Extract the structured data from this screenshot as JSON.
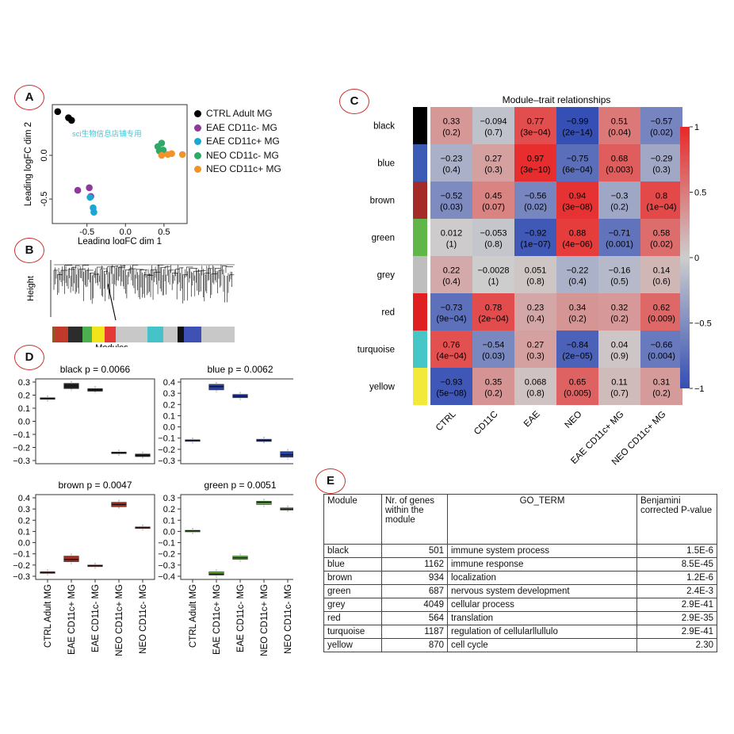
{
  "panel_labels": {
    "a": "A",
    "b": "B",
    "c": "C",
    "d": "D",
    "e": "E"
  },
  "colors": {
    "panel_circle": "#c9302c"
  },
  "chart_data": [
    {
      "id": "A",
      "type": "scatter",
      "xlabel": "Leading logFC dim 1",
      "ylabel": "Leading logFC dim 2",
      "xticks": [
        "-0.5",
        "0.0",
        "0.5"
      ],
      "yticks": [
        "-0.5",
        "0.0"
      ],
      "xlim": [
        -0.95,
        0.8
      ],
      "ylim": [
        -0.78,
        0.58
      ],
      "watermark": "sci生物信息店铺专用",
      "series": [
        {
          "name": "CTRL Adult MG",
          "color": "#000000",
          "points": [
            [
              -0.88,
              0.5
            ],
            [
              -0.74,
              0.43
            ],
            [
              -0.7,
              0.4
            ]
          ]
        },
        {
          "name": "EAE CD11c- MG",
          "color": "#8e3a9b",
          "points": [
            [
              -0.62,
              -0.4
            ],
            [
              -0.47,
              -0.37
            ],
            [
              -0.45,
              -0.47
            ]
          ]
        },
        {
          "name": "EAE CD11c+ MG",
          "color": "#1aa7d4",
          "points": [
            [
              -0.46,
              -0.48
            ],
            [
              -0.42,
              -0.6
            ],
            [
              -0.41,
              -0.65
            ]
          ]
        },
        {
          "name": "NEO CD11c- MG",
          "color": "#2dab66",
          "points": [
            [
              0.42,
              0.1
            ],
            [
              0.47,
              0.14
            ],
            [
              0.44,
              0.05
            ],
            [
              0.49,
              0.06
            ]
          ]
        },
        {
          "name": "NEO CD11c+ MG",
          "color": "#f0932b",
          "points": [
            [
              0.47,
              0.0
            ],
            [
              0.55,
              0.01
            ],
            [
              0.6,
              0.02
            ],
            [
              0.74,
              0.01
            ]
          ]
        }
      ]
    },
    {
      "id": "B",
      "type": "dendrogram",
      "ylabel": "Height",
      "xlabel": "Modules",
      "module_colors": [
        "#8b5a2b",
        "#c0392b",
        "#2c2c2c",
        "#4caf50",
        "#f1e41b",
        "#e53935",
        "#c8c8c8",
        "#45c3c8",
        "#c8c8c8",
        "#111111",
        "#3f51b5",
        "#c8c8c8"
      ]
    },
    {
      "id": "C",
      "type": "heatmap",
      "title": "Module–trait relationships",
      "rows": [
        "black",
        "blue",
        "brown",
        "green",
        "grey",
        "red",
        "turquoise",
        "yellow"
      ],
      "row_colors": [
        "#000000",
        "#3b5bb5",
        "#a52a2a",
        "#61b64a",
        "#bebebe",
        "#e02020",
        "#46c6c6",
        "#f3e93b"
      ],
      "columns": [
        "CTRL",
        "CD11C",
        "EAE",
        "NEO",
        "EAE CD11c+ MG",
        "NEO CD11c+ MG"
      ],
      "values": [
        [
          0.33,
          -0.094,
          0.77,
          -0.99,
          0.51,
          -0.57
        ],
        [
          -0.23,
          0.27,
          0.97,
          -0.75,
          0.68,
          -0.29
        ],
        [
          -0.52,
          0.45,
          -0.56,
          0.94,
          -0.3,
          0.8
        ],
        [
          0.012,
          -0.053,
          -0.92,
          0.88,
          -0.71,
          0.58
        ],
        [
          0.22,
          -0.0028,
          0.051,
          -0.22,
          -0.16,
          0.14
        ],
        [
          -0.73,
          0.78,
          0.23,
          0.34,
          0.32,
          0.62
        ],
        [
          0.76,
          -0.54,
          0.27,
          -0.84,
          0.04,
          -0.66
        ],
        [
          -0.93,
          0.35,
          0.068,
          0.65,
          0.11,
          0.31
        ]
      ],
      "value_labels": [
        [
          "0.33",
          "−0.094",
          "0.77",
          "−0.99",
          "0.51",
          "−0.57"
        ],
        [
          "−0.23",
          "0.27",
          "0.97",
          "−0.75",
          "0.68",
          "−0.29"
        ],
        [
          "−0.52",
          "0.45",
          "−0.56",
          "0.94",
          "−0.3",
          "0.8"
        ],
        [
          "0.012",
          "−0.053",
          "−0.92",
          "0.88",
          "−0.71",
          "0.58"
        ],
        [
          "0.22",
          "−0.0028",
          "0.051",
          "−0.22",
          "−0.16",
          "0.14"
        ],
        [
          "−0.73",
          "0.78",
          "0.23",
          "0.34",
          "0.32",
          "0.62"
        ],
        [
          "0.76",
          "−0.54",
          "0.27",
          "−0.84",
          "0.04",
          "−0.66"
        ],
        [
          "−0.93",
          "0.35",
          "0.068",
          "0.65",
          "0.11",
          "0.31"
        ]
      ],
      "pvalues": [
        [
          "(0.2)",
          "(0.7)",
          "(3e−04)",
          "(2e−14)",
          "(0.04)",
          "(0.02)"
        ],
        [
          "(0.4)",
          "(0.3)",
          "(3e−10)",
          "(6e−04)",
          "(0.003)",
          "(0.3)"
        ],
        [
          "(0.03)",
          "(0.07)",
          "(0.02)",
          "(3e−08)",
          "(0.2)",
          "(1e−04)"
        ],
        [
          "(1)",
          "(0.8)",
          "(1e−07)",
          "(4e−06)",
          "(0.001)",
          "(0.02)"
        ],
        [
          "(0.4)",
          "(1)",
          "(0.8)",
          "(0.4)",
          "(0.5)",
          "(0.6)"
        ],
        [
          "(9e−04)",
          "(2e−04)",
          "(0.4)",
          "(0.2)",
          "(0.2)",
          "(0.009)"
        ],
        [
          "(4e−04)",
          "(0.03)",
          "(0.3)",
          "(2e−05)",
          "(0.9)",
          "(0.004)"
        ],
        [
          "(5e−08)",
          "(0.2)",
          "(0.8)",
          "(0.005)",
          "(0.7)",
          "(0.2)"
        ]
      ],
      "scale_ticks": [
        "1",
        "0.5",
        "0",
        "−0.5",
        "−1"
      ],
      "scale_values": [
        1,
        0.5,
        0,
        -0.5,
        -1
      ]
    },
    {
      "id": "D",
      "type": "boxplot",
      "groups": [
        "CTRL Adult MG",
        "EAE CD11c+ MG",
        "EAE CD11c- MG",
        "NEO CD11c+ MG",
        "NEO CD11c- MG"
      ],
      "panels": [
        {
          "title": "black p = 0.0066",
          "color": "#222222",
          "ylim": [
            -0.3,
            0.3
          ],
          "yticks": [
            "0.3",
            "0.2",
            "0.1",
            "0.0",
            "−0.1",
            "−0.2",
            "−0.3"
          ],
          "ytick_values": [
            0.3,
            0.2,
            0.1,
            0.0,
            -0.1,
            -0.2,
            -0.3
          ],
          "boxes": [
            [
              0.17,
              0.175,
              0.18
            ],
            [
              0.25,
              0.27,
              0.29
            ],
            [
              0.23,
              0.24,
              0.25
            ],
            [
              -0.245,
              -0.24,
              -0.235
            ],
            [
              -0.27,
              -0.26,
              -0.25
            ]
          ]
        },
        {
          "title": "blue p = 0.0062",
          "color": "#2b3f9e",
          "ylim": [
            -0.3,
            0.4
          ],
          "yticks": [
            "0.4",
            "0.3",
            "0.2",
            "0.1",
            "0.0",
            "−0.1",
            "−0.2",
            "−0.3"
          ],
          "ytick_values": [
            0.4,
            0.3,
            0.2,
            0.1,
            0.0,
            -0.1,
            -0.2,
            -0.3
          ],
          "boxes": [
            [
              -0.125,
              -0.12,
              -0.115
            ],
            [
              0.33,
              0.36,
              0.38
            ],
            [
              0.26,
              0.275,
              0.29
            ],
            [
              -0.13,
              -0.12,
              -0.11
            ],
            [
              -0.27,
              -0.25,
              -0.22
            ]
          ]
        },
        {
          "title": "brown p = 0.0047",
          "color": "#a13024",
          "ylim": [
            -0.3,
            0.4
          ],
          "yticks": [
            "0.4",
            "0.3",
            "0.2",
            "0.1",
            "0.0",
            "−0.1",
            "−0.2",
            "−0.3"
          ],
          "ytick_values": [
            0.4,
            0.3,
            0.2,
            0.1,
            0.0,
            -0.1,
            -0.2,
            -0.3
          ],
          "boxes": [
            [
              -0.27,
              -0.265,
              -0.26
            ],
            [
              -0.17,
              -0.15,
              -0.12
            ],
            [
              -0.21,
              -0.205,
              -0.2
            ],
            [
              0.32,
              0.34,
              0.36
            ],
            [
              0.13,
              0.135,
              0.14
            ]
          ]
        },
        {
          "title": "green p = 0.0051",
          "color": "#5fae3c",
          "ylim": [
            -0.4,
            0.3
          ],
          "yticks": [
            "0.3",
            "0.2",
            "0.1",
            "0.0",
            "−0.1",
            "−0.2",
            "−0.3",
            "−0.4"
          ],
          "ytick_values": [
            0.3,
            0.2,
            0.1,
            0.0,
            -0.1,
            -0.2,
            -0.3,
            -0.4
          ],
          "boxes": [
            [
              0.0,
              0.005,
              0.01
            ],
            [
              -0.39,
              -0.38,
              -0.36
            ],
            [
              -0.25,
              -0.235,
              -0.22
            ],
            [
              0.24,
              0.26,
              0.27
            ],
            [
              0.19,
              0.2,
              0.21
            ]
          ]
        }
      ]
    }
  ],
  "table_e": {
    "headers": [
      "Module",
      "Nr. of genes within the module",
      "GO_TERM",
      "Benjamini corrected P-value"
    ],
    "rows": [
      [
        "black",
        "501",
        "immune system process",
        "1.5E-6"
      ],
      [
        "blue",
        "1162",
        "immune response",
        "8.5E-45"
      ],
      [
        "brown",
        "934",
        "localization",
        "1.2E-6"
      ],
      [
        "green",
        "687",
        "nervous system development",
        "2.4E-3"
      ],
      [
        "grey",
        "4049",
        "cellular process",
        "2.9E-41"
      ],
      [
        "red",
        "564",
        "translation",
        "2.9E-35"
      ],
      [
        "turquoise",
        "1187",
        "regulation of cellularllullulo",
        "2.9E-41"
      ],
      [
        "yellow",
        "870",
        "cell cycle",
        "2.30"
      ]
    ]
  }
}
